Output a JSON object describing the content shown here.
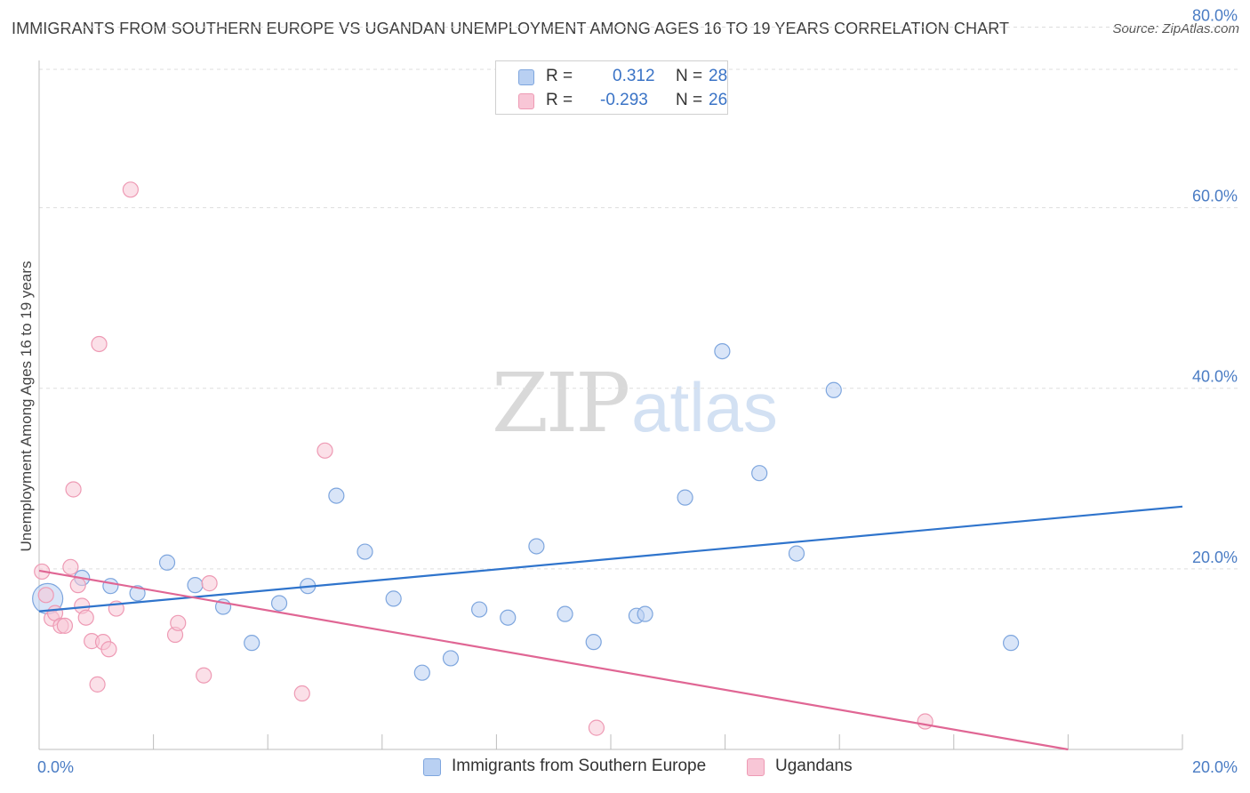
{
  "header": {
    "title": "IMMIGRANTS FROM SOUTHERN EUROPE VS UGANDAN UNEMPLOYMENT AMONG AGES 16 TO 19 YEARS CORRELATION CHART",
    "source": "Source: ZipAtlas.com"
  },
  "watermark": {
    "zip": "ZIP",
    "atlas": "atlas"
  },
  "colors": {
    "blue_fill": "#b9d0f2",
    "blue_stroke": "#7ea6de",
    "blue_line": "#2f74cc",
    "pink_fill": "#f8c6d6",
    "pink_stroke": "#ee9ab4",
    "pink_line": "#e06694",
    "tick_text": "#4a7cc4",
    "grid": "#dddddd"
  },
  "legend": {
    "rows": [
      {
        "r_label": "R =",
        "r_value": "0.312",
        "n_label": "N =",
        "n_value": "28"
      },
      {
        "r_label": "R =",
        "r_value": "-0.293",
        "n_label": "N =",
        "n_value": "26"
      }
    ]
  },
  "chart_data": {
    "type": "scatter",
    "title": "IMMIGRANTS FROM SOUTHERN EUROPE VS UGANDAN UNEMPLOYMENT AMONG AGES 16 TO 19 YEARS CORRELATION CHART",
    "xlabel": "",
    "ylabel": "Unemployment Among Ages 16 to 19 years",
    "xlim": [
      0,
      20
    ],
    "ylim": [
      0,
      83
    ],
    "x_ticks": [
      0,
      20
    ],
    "x_tick_labels": [
      "0.0%",
      "20.0%"
    ],
    "y_ticks": [
      20,
      40,
      60,
      80
    ],
    "y_tick_labels": [
      "20.0%",
      "40.0%",
      "60.0%",
      "80.0%"
    ],
    "grid": true,
    "series": [
      {
        "name": "Immigrants from Southern Europe",
        "color": "blue",
        "trend": {
          "x": [
            0,
            20
          ],
          "y": [
            15.3,
            26.9
          ]
        },
        "points": [
          {
            "x": 0.15,
            "y": 16.7,
            "large": true
          },
          {
            "x": 0.75,
            "y": 19.0
          },
          {
            "x": 1.25,
            "y": 18.1
          },
          {
            "x": 1.72,
            "y": 17.3
          },
          {
            "x": 2.24,
            "y": 20.7
          },
          {
            "x": 2.73,
            "y": 18.2
          },
          {
            "x": 3.22,
            "y": 15.8
          },
          {
            "x": 3.72,
            "y": 11.8
          },
          {
            "x": 4.2,
            "y": 16.2
          },
          {
            "x": 4.7,
            "y": 18.1
          },
          {
            "x": 5.2,
            "y": 28.1
          },
          {
            "x": 5.7,
            "y": 21.9
          },
          {
            "x": 6.2,
            "y": 16.7
          },
          {
            "x": 6.7,
            "y": 8.5
          },
          {
            "x": 7.2,
            "y": 10.1
          },
          {
            "x": 7.7,
            "y": 15.5
          },
          {
            "x": 8.2,
            "y": 14.6
          },
          {
            "x": 8.7,
            "y": 22.5
          },
          {
            "x": 9.2,
            "y": 15.0
          },
          {
            "x": 9.7,
            "y": 11.9
          },
          {
            "x": 10.45,
            "y": 14.8
          },
          {
            "x": 10.6,
            "y": 15.0
          },
          {
            "x": 11.3,
            "y": 27.9
          },
          {
            "x": 11.95,
            "y": 44.1
          },
          {
            "x": 12.6,
            "y": 30.6
          },
          {
            "x": 13.25,
            "y": 21.7
          },
          {
            "x": 13.9,
            "y": 39.8
          },
          {
            "x": 17.0,
            "y": 11.8
          }
        ]
      },
      {
        "name": "Ugandans",
        "color": "pink",
        "trend": {
          "x": [
            0,
            20
          ],
          "y": [
            19.8,
            -2.2
          ]
        },
        "points": [
          {
            "x": 0.05,
            "y": 19.7
          },
          {
            "x": 0.12,
            "y": 17.1
          },
          {
            "x": 0.22,
            "y": 14.5
          },
          {
            "x": 0.28,
            "y": 15.1
          },
          {
            "x": 0.38,
            "y": 13.7
          },
          {
            "x": 0.45,
            "y": 13.7
          },
          {
            "x": 0.55,
            "y": 20.2
          },
          {
            "x": 0.6,
            "y": 28.8
          },
          {
            "x": 0.68,
            "y": 18.2
          },
          {
            "x": 0.75,
            "y": 15.9
          },
          {
            "x": 0.82,
            "y": 14.6
          },
          {
            "x": 0.92,
            "y": 12.0
          },
          {
            "x": 1.02,
            "y": 7.2
          },
          {
            "x": 1.05,
            "y": 44.9
          },
          {
            "x": 1.12,
            "y": 11.9
          },
          {
            "x": 1.22,
            "y": 11.1
          },
          {
            "x": 1.35,
            "y": 15.6
          },
          {
            "x": 1.6,
            "y": 62.0
          },
          {
            "x": 2.38,
            "y": 12.7
          },
          {
            "x": 2.43,
            "y": 14.0
          },
          {
            "x": 2.88,
            "y": 8.2
          },
          {
            "x": 2.98,
            "y": 18.4
          },
          {
            "x": 4.6,
            "y": 6.2
          },
          {
            "x": 5.0,
            "y": 33.1
          },
          {
            "x": 9.75,
            "y": 2.4
          },
          {
            "x": 15.5,
            "y": 3.1
          }
        ]
      }
    ]
  }
}
